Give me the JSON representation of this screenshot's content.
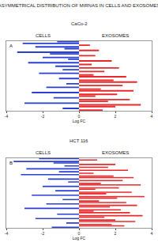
{
  "title": "ASYMMETRICAL DISTRIBUTION OF MIRNAS IN CELLS AND EXOSOMES",
  "chart_data": [
    {
      "type": "bar",
      "orientation": "horizontal",
      "stacked": true,
      "panel": "A",
      "title": "CaCo-2",
      "x_label": "Log FC",
      "xlim": [
        -4,
        4
      ],
      "xticks": [
        -4,
        -2,
        0,
        2,
        4
      ],
      "grid": false,
      "tick_labels": "x",
      "categories": [
        null,
        null,
        null,
        null,
        null,
        null,
        null,
        null,
        null,
        null,
        null,
        null,
        null,
        null,
        null,
        null,
        null,
        null,
        null,
        null,
        null,
        null,
        null,
        null,
        null,
        null,
        null,
        null,
        null,
        null,
        null,
        null,
        null,
        null,
        null,
        null,
        null,
        null,
        null,
        null
      ],
      "series": [
        {
          "name": "CELLS",
          "color": "#2b3fd6",
          "values": [
            -1.2,
            -3.1,
            null,
            -2.4,
            -0.8,
            null,
            -3.4,
            -1.6,
            null,
            -2.0,
            -0.6,
            null,
            -2.8,
            null,
            -1.3,
            null,
            -0.9,
            null,
            -2.2,
            null,
            null,
            -1.1,
            null,
            null,
            -0.7,
            null,
            -1.8,
            null,
            null,
            -2.6,
            null,
            null,
            -1.4,
            null,
            null,
            -3.0,
            null,
            null,
            -0.9,
            null
          ]
        },
        {
          "name": "EXOSOMES",
          "color": "#e8282b",
          "values": [
            null,
            null,
            0.6,
            null,
            null,
            1.1,
            null,
            null,
            0.9,
            null,
            null,
            1.8,
            null,
            0.7,
            null,
            2.2,
            null,
            1.4,
            null,
            0.8,
            2.6,
            null,
            1.9,
            3.2,
            null,
            2.4,
            null,
            1.2,
            3.0,
            null,
            2.1,
            0.9,
            null,
            2.8,
            1.6,
            null,
            3.4,
            2.0,
            null,
            1.3
          ]
        }
      ]
    },
    {
      "type": "bar",
      "orientation": "horizontal",
      "stacked": true,
      "panel": "B",
      "title": "HCT 116",
      "x_label": "Log FC",
      "xlim": [
        -4,
        4
      ],
      "xticks": [
        -4,
        -2,
        0,
        2,
        4
      ],
      "grid": false,
      "tick_labels": "x",
      "categories": [
        null,
        null,
        null,
        null,
        null,
        null,
        null,
        null,
        null,
        null,
        null,
        null,
        null,
        null,
        null,
        null,
        null,
        null,
        null,
        null,
        null,
        null,
        null,
        null,
        null,
        null,
        null,
        null,
        null,
        null,
        null,
        null,
        null,
        null,
        null,
        null,
        null,
        null,
        null,
        null,
        null,
        null,
        null,
        null,
        null,
        null,
        null,
        null
      ],
      "series": [
        {
          "name": "CELLS",
          "color": "#2b3fd6",
          "values": [
            -2.2,
            null,
            -3.6,
            -1.4,
            null,
            -0.8,
            null,
            -2.9,
            null,
            -1.1,
            null,
            -3.2,
            null,
            null,
            -1.7,
            null,
            -0.6,
            null,
            null,
            -2.0,
            null,
            null,
            -1.3,
            null,
            null,
            -2.6,
            null,
            null,
            -0.9,
            null,
            null,
            -1.8,
            null,
            null,
            -3.0,
            null,
            null,
            null,
            -1.2,
            null,
            null,
            -2.4,
            null,
            null,
            -0.7,
            null,
            null,
            -1.5
          ]
        },
        {
          "name": "EXOSOMES",
          "color": "#e8282b",
          "values": [
            null,
            1.0,
            null,
            null,
            2.0,
            null,
            1.6,
            null,
            2.7,
            null,
            0.8,
            null,
            1.9,
            3.0,
            null,
            2.4,
            null,
            1.2,
            3.4,
            null,
            2.2,
            0.9,
            null,
            2.9,
            1.5,
            null,
            3.6,
            2.1,
            null,
            1.1,
            2.6,
            null,
            3.2,
            1.7,
            null,
            2.3,
            0.8,
            2.8,
            null,
            3.5,
            1.4,
            null,
            2.0,
            3.1,
            null,
            1.8,
            2.5,
            null
          ]
        }
      ]
    }
  ]
}
